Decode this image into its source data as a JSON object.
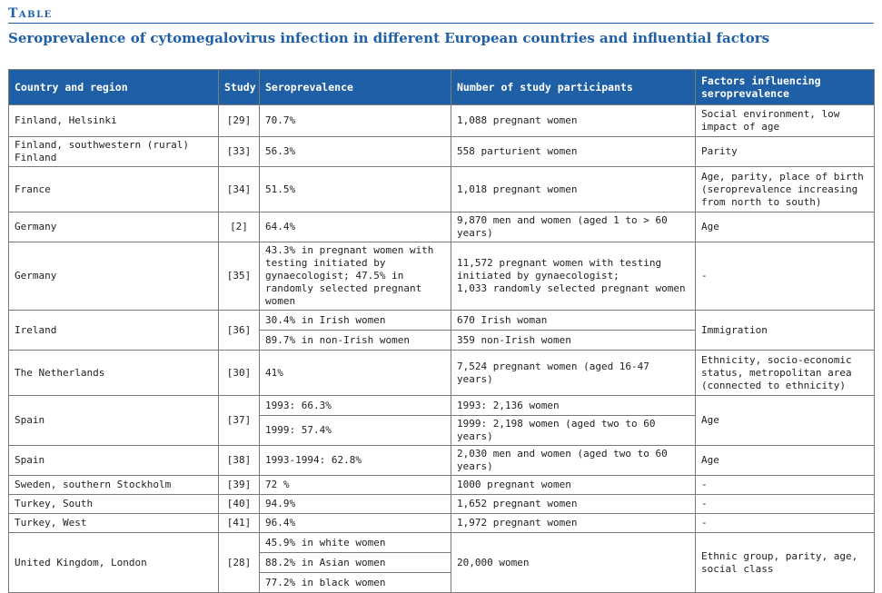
{
  "label": "Table",
  "title": "Seroprevalence of cytomegalovirus infection in different European countries and influential factors",
  "headers": {
    "country": "Country and region",
    "study": "Study",
    "sero": "Seroprevalence",
    "participants": "Number of study participants",
    "factors": "Factors influencing seroprevalence"
  },
  "rows": [
    {
      "country": "Finland, Helsinki",
      "study": "[29]",
      "sero": "70.7%",
      "participants": "1,088 pregnant women",
      "factors": "Social environment, low impact of age"
    },
    {
      "country": "Finland, southwestern (rural) Finland",
      "study": "[33]",
      "sero": "56.3%",
      "participants": "558 parturient women",
      "factors": "Parity"
    },
    {
      "country": "France",
      "study": "[34]",
      "sero": "51.5%",
      "participants": "1,018 pregnant women",
      "factors": "Age, parity, place of birth (seroprevalence increasing from north to south)"
    },
    {
      "country": "Germany",
      "study": "[2]",
      "sero": "64.4%",
      "participants": "9,870 men and women (aged 1 to > 60 years)",
      "factors": "Age"
    },
    {
      "country": "Germany",
      "study": "[35]",
      "sero": "43.3% in pregnant women with testing initiated by gynaecologist; 47.5% in randomly selected pregnant women",
      "participants": "11,572 pregnant women with testing initiated by gynaecologist;\n1,033 randomly selected pregnant women",
      "factors": "-"
    },
    {
      "country": "Ireland",
      "study": "[36]",
      "sero": [
        "30.4% in Irish women",
        "89.7% in non-Irish women"
      ],
      "participants": [
        "670 Irish woman",
        "359 non-Irish women"
      ],
      "factors": "Immigration"
    },
    {
      "country": "The Netherlands",
      "study": "[30]",
      "sero": "41%",
      "participants": "7,524 pregnant women (aged 16-47 years)",
      "factors": "Ethnicity, socio-economic status, metropolitan area (connected to ethnicity)"
    },
    {
      "country": "Spain",
      "study": "[37]",
      "sero": [
        "1993: 66.3%",
        "1999: 57.4%"
      ],
      "participants": [
        "1993: 2,136 women",
        "1999: 2,198 women (aged two to 60 years)"
      ],
      "factors": "Age"
    },
    {
      "country": "Spain",
      "study": "[38]",
      "sero": "1993-1994: 62.8%",
      "participants": "2,030 men and women (aged two to 60 years)",
      "factors": "Age"
    },
    {
      "country": "Sweden, southern Stockholm",
      "study": "[39]",
      "sero": "72 %",
      "participants": "1000 pregnant women",
      "factors": "-"
    },
    {
      "country": "Turkey, South",
      "study": "[40]",
      "sero": "94.9%",
      "participants": "1,652 pregnant women",
      "factors": "-"
    },
    {
      "country": "Turkey, West",
      "study": "[41]",
      "sero": "96.4%",
      "participants": "1,972 pregnant women",
      "factors": "-"
    },
    {
      "country": "United Kingdom, London",
      "study": "[28]",
      "sero": [
        "45.9% in white women",
        "88.2% in Asian women",
        "77.2% in black women"
      ],
      "participants": "20,000 women",
      "factors": "Ethnic group, parity, age, social class"
    }
  ]
}
